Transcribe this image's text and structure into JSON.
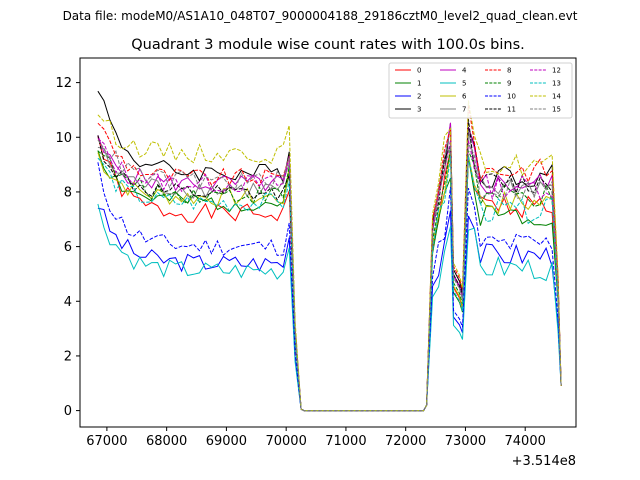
{
  "chart_data": {
    "type": "line",
    "suptitle": "Data file: modeM0/AS1A10_048T07_9000004188_29186cztM0_level2_quad_clean.evt",
    "title": "Quadrant 3 module wise count rates with 100.0s bins.",
    "xlabel": "",
    "ylabel": "",
    "x_offset_label": "+3.514e8",
    "xlim": [
      66550,
      74850
    ],
    "ylim": [
      -0.6,
      12.9
    ],
    "x_ticks": [
      67000,
      68000,
      69000,
      70000,
      71000,
      72000,
      73000,
      74000
    ],
    "x_tick_labels": [
      "67000",
      "68000",
      "69000",
      "70000",
      "71000",
      "72000",
      "73000",
      "74000"
    ],
    "y_ticks": [
      0,
      2,
      4,
      6,
      8,
      10,
      12
    ],
    "y_tick_labels": [
      "0",
      "2",
      "4",
      "6",
      "8",
      "10",
      "12"
    ],
    "legend_position": "upper right, 4 columns",
    "series": [
      {
        "name": "0",
        "color": "#ff0000",
        "dash": "solid",
        "s1_start": 10.0,
        "s1_level": 7.2,
        "s2_level": 7.5,
        "seed": 1
      },
      {
        "name": "1",
        "color": "#008000",
        "dash": "solid",
        "s1_start": 9.6,
        "s1_level": 7.6,
        "s2_level": 7.2,
        "seed": 2
      },
      {
        "name": "2",
        "color": "#0000ff",
        "dash": "solid",
        "s1_start": 7.6,
        "s1_level": 5.4,
        "s2_level": 5.7,
        "seed": 3
      },
      {
        "name": "3",
        "color": "#000000",
        "dash": "solid",
        "s1_start": 12.0,
        "s1_level": 8.7,
        "s2_level": 8.6,
        "seed": 4
      },
      {
        "name": "4",
        "color": "#bf00bf",
        "dash": "solid",
        "s1_start": 9.8,
        "s1_level": 8.3,
        "s2_level": 8.3,
        "seed": 5
      },
      {
        "name": "5",
        "color": "#00bfbf",
        "dash": "solid",
        "s1_start": 7.4,
        "s1_level": 5.1,
        "s2_level": 5.2,
        "seed": 6
      },
      {
        "name": "6",
        "color": "#bfbf00",
        "dash": "solid",
        "s1_start": 9.4,
        "s1_level": 7.8,
        "s2_level": 7.6,
        "seed": 7
      },
      {
        "name": "7",
        "color": "#808080",
        "dash": "solid",
        "s1_start": 9.7,
        "s1_level": 8.1,
        "s2_level": 8.2,
        "seed": 8
      },
      {
        "name": "8",
        "color": "#ff0000",
        "dash": "dashed",
        "s1_start": 10.7,
        "s1_level": 8.5,
        "s2_level": 8.8,
        "seed": 9
      },
      {
        "name": "9",
        "color": "#008000",
        "dash": "dashed",
        "s1_start": 9.8,
        "s1_level": 7.9,
        "s2_level": 7.8,
        "seed": 10
      },
      {
        "name": "10",
        "color": "#0000ff",
        "dash": "dashed",
        "s1_start": 8.8,
        "s1_level": 6.0,
        "s2_level": 6.1,
        "seed": 11
      },
      {
        "name": "11",
        "color": "#000000",
        "dash": "dashed",
        "s1_start": 9.9,
        "s1_level": 7.9,
        "s2_level": 8.3,
        "seed": 12
      },
      {
        "name": "12",
        "color": "#bf00bf",
        "dash": "dashed",
        "s1_start": 9.9,
        "s1_level": 8.3,
        "s2_level": 8.2,
        "seed": 13
      },
      {
        "name": "13",
        "color": "#00bfbf",
        "dash": "dashed",
        "s1_start": 9.3,
        "s1_level": 7.6,
        "s2_level": 7.3,
        "seed": 14
      },
      {
        "name": "14",
        "color": "#bfbf00",
        "dash": "dashed",
        "s1_start": 11.0,
        "s1_level": 9.4,
        "s2_level": 9.0,
        "seed": 15
      },
      {
        "name": "15",
        "color": "#808080",
        "dash": "dashed",
        "s1_start": 10.2,
        "s1_level": 8.4,
        "s2_level": 8.1,
        "seed": 16
      }
    ]
  }
}
